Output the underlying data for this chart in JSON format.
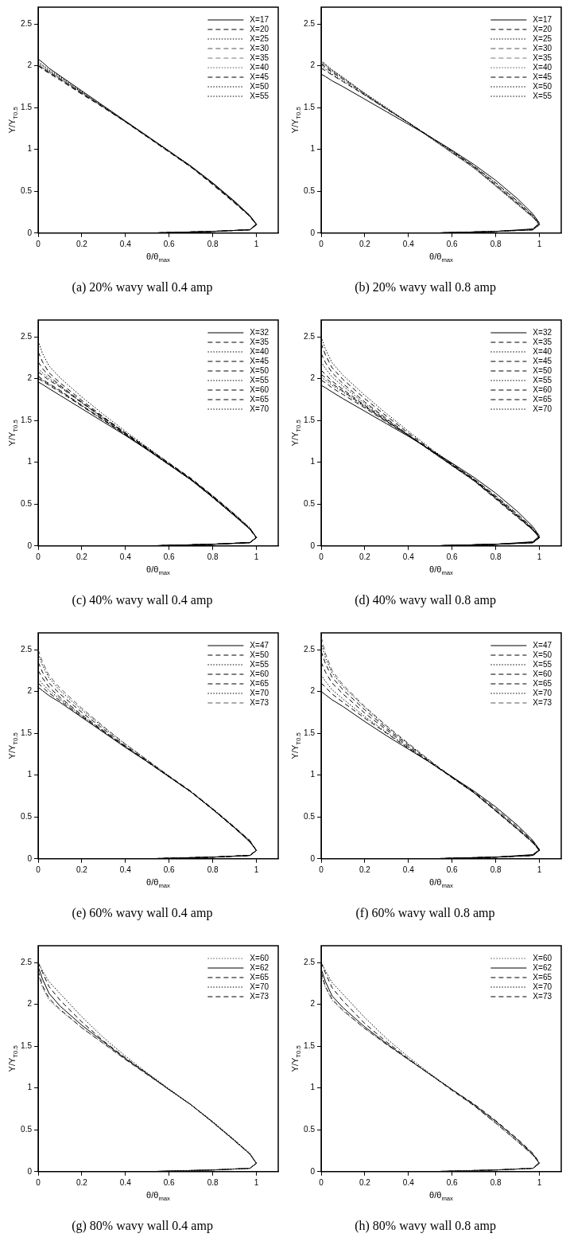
{
  "chart_data": [
    {
      "type": "line",
      "title": "(a) 20% wavy wall 0.4 amp",
      "xlabel": "θ/θ$_{max}$",
      "ylabel": "Y/Y$_{T0.5}$",
      "xlim": [
        0,
        1.1
      ],
      "ylim": [
        0,
        2.7
      ],
      "xticks": [
        0,
        0.2,
        0.4,
        0.6,
        0.8,
        1
      ],
      "yticks": [
        0,
        0.5,
        1,
        1.5,
        2,
        2.5
      ],
      "legend": "top right",
      "x": [
        0,
        0.02,
        0.05,
        0.1,
        0.2,
        0.3,
        0.4,
        0.5,
        0.6,
        0.7,
        0.8,
        0.9,
        0.97,
        1,
        0.97,
        0.8,
        0.5,
        0
      ],
      "series": [
        {
          "name": "X=17",
          "color": "#000000",
          "line_style": "solid",
          "values": [
            2.08,
            2.04,
            1.97,
            1.88,
            1.7,
            1.52,
            1.34,
            1.16,
            0.98,
            0.8,
            0.6,
            0.38,
            0.21,
            0.11,
            0.04,
            0.02,
            0,
            0
          ]
        },
        {
          "name": "X=20",
          "color": "#000000",
          "line_style": "dashed",
          "values": [
            2.0,
            1.97,
            1.92,
            1.84,
            1.67,
            1.5,
            1.33,
            1.15,
            0.97,
            0.79,
            0.58,
            0.36,
            0.2,
            0.1,
            0.04,
            0.02,
            0,
            0
          ]
        },
        {
          "name": "X=25",
          "color": "#000000",
          "line_style": "dotted",
          "values": [
            2.05,
            2.01,
            1.95,
            1.87,
            1.69,
            1.51,
            1.33,
            1.16,
            0.98,
            0.8,
            0.59,
            0.37,
            0.2,
            0.1,
            0.04,
            0.02,
            0,
            0
          ]
        },
        {
          "name": "X=30",
          "color": "#555555",
          "line_style": "dashed",
          "values": [
            2.0,
            1.96,
            1.91,
            1.83,
            1.67,
            1.5,
            1.33,
            1.15,
            0.97,
            0.79,
            0.58,
            0.36,
            0.2,
            0.1,
            0.04,
            0.02,
            0,
            0
          ]
        },
        {
          "name": "X=35",
          "color": "#777777",
          "line_style": "dashed",
          "values": [
            2.02,
            1.98,
            1.93,
            1.85,
            1.68,
            1.5,
            1.33,
            1.15,
            0.97,
            0.79,
            0.58,
            0.36,
            0.2,
            0.1,
            0.04,
            0.02,
            0,
            0
          ]
        },
        {
          "name": "X=40",
          "color": "#555555",
          "line_style": "dotted",
          "values": [
            2.01,
            1.97,
            1.92,
            1.84,
            1.67,
            1.5,
            1.33,
            1.15,
            0.97,
            0.79,
            0.59,
            0.37,
            0.2,
            0.1,
            0.04,
            0.02,
            0,
            0
          ]
        },
        {
          "name": "X=45",
          "color": "#000000",
          "line_style": "dashed",
          "values": [
            2.0,
            1.96,
            1.91,
            1.83,
            1.66,
            1.5,
            1.33,
            1.15,
            0.97,
            0.79,
            0.59,
            0.37,
            0.2,
            0.1,
            0.04,
            0.02,
            0,
            0
          ]
        },
        {
          "name": "X=50",
          "color": "#000000",
          "line_style": "dotted",
          "values": [
            2.02,
            1.98,
            1.93,
            1.85,
            1.68,
            1.51,
            1.33,
            1.15,
            0.97,
            0.79,
            0.59,
            0.37,
            0.2,
            0.1,
            0.04,
            0.02,
            0,
            0
          ]
        },
        {
          "name": "X=55",
          "color": "#000000",
          "line_style": "dotted",
          "values": [
            2.04,
            2.0,
            1.94,
            1.86,
            1.68,
            1.51,
            1.33,
            1.16,
            0.98,
            0.8,
            0.6,
            0.38,
            0.21,
            0.1,
            0.04,
            0.02,
            0,
            0
          ]
        }
      ]
    },
    {
      "type": "line",
      "title": "(b) 20% wavy wall 0.8 amp",
      "xlabel": "θ/θ$_{max}$",
      "ylabel": "Y/Y$_{T0.5}$",
      "xlim": [
        0,
        1.1
      ],
      "ylim": [
        0,
        2.7
      ],
      "xticks": [
        0,
        0.2,
        0.4,
        0.6,
        0.8,
        1
      ],
      "yticks": [
        0,
        0.5,
        1,
        1.5,
        2,
        2.5
      ],
      "legend": "top right",
      "x": [
        0,
        0.02,
        0.05,
        0.1,
        0.2,
        0.3,
        0.4,
        0.5,
        0.6,
        0.7,
        0.8,
        0.9,
        0.97,
        1,
        0.97,
        0.8,
        0.5,
        0
      ],
      "series": [
        {
          "name": "X=17",
          "color": "#000000",
          "line_style": "solid",
          "values": [
            1.9,
            1.87,
            1.82,
            1.75,
            1.6,
            1.45,
            1.3,
            1.15,
            0.99,
            0.82,
            0.63,
            0.41,
            0.23,
            0.12,
            0.05,
            0.02,
            0,
            0
          ]
        },
        {
          "name": "X=20",
          "color": "#000000",
          "line_style": "dashed",
          "values": [
            1.97,
            1.94,
            1.89,
            1.81,
            1.65,
            1.48,
            1.32,
            1.15,
            0.98,
            0.8,
            0.6,
            0.38,
            0.21,
            0.11,
            0.04,
            0.02,
            0,
            0
          ]
        },
        {
          "name": "X=25",
          "color": "#000000",
          "line_style": "dotted",
          "values": [
            2.0,
            1.96,
            1.9,
            1.82,
            1.65,
            1.48,
            1.32,
            1.15,
            0.98,
            0.8,
            0.6,
            0.38,
            0.21,
            0.11,
            0.04,
            0.02,
            0,
            0
          ]
        },
        {
          "name": "X=30",
          "color": "#555555",
          "line_style": "dashed",
          "values": [
            2.03,
            1.99,
            1.93,
            1.84,
            1.66,
            1.49,
            1.32,
            1.14,
            0.96,
            0.78,
            0.57,
            0.35,
            0.19,
            0.1,
            0.04,
            0.02,
            0,
            0
          ]
        },
        {
          "name": "X=35",
          "color": "#777777",
          "line_style": "dashed",
          "values": [
            2.05,
            2.01,
            1.94,
            1.85,
            1.66,
            1.49,
            1.32,
            1.14,
            0.96,
            0.78,
            0.56,
            0.34,
            0.19,
            0.1,
            0.04,
            0.02,
            0,
            0
          ]
        },
        {
          "name": "X=40",
          "color": "#555555",
          "line_style": "dotted",
          "values": [
            2.04,
            2.0,
            1.94,
            1.85,
            1.67,
            1.49,
            1.32,
            1.14,
            0.96,
            0.78,
            0.57,
            0.35,
            0.19,
            0.1,
            0.04,
            0.02,
            0,
            0
          ]
        },
        {
          "name": "X=45",
          "color": "#000000",
          "line_style": "dashed",
          "values": [
            2.02,
            1.98,
            1.92,
            1.84,
            1.66,
            1.49,
            1.32,
            1.14,
            0.97,
            0.79,
            0.58,
            0.36,
            0.2,
            0.1,
            0.04,
            0.02,
            0,
            0
          ]
        },
        {
          "name": "X=50",
          "color": "#000000",
          "line_style": "dotted",
          "values": [
            2.06,
            2.02,
            1.95,
            1.86,
            1.67,
            1.5,
            1.32,
            1.14,
            0.96,
            0.78,
            0.57,
            0.35,
            0.19,
            0.1,
            0.04,
            0.02,
            0,
            0
          ]
        },
        {
          "name": "X=55",
          "color": "#000000",
          "line_style": "dotted",
          "values": [
            2.05,
            2.01,
            1.95,
            1.86,
            1.67,
            1.49,
            1.32,
            1.14,
            0.96,
            0.78,
            0.56,
            0.34,
            0.19,
            0.1,
            0.04,
            0.02,
            0,
            0
          ]
        }
      ]
    },
    {
      "type": "line",
      "title": "(c) 40% wavy wall 0.4 amp",
      "xlabel": "θ/θ$_{max}$",
      "ylabel": "Y/Y$_{T0.5}$",
      "xlim": [
        0,
        1.1
      ],
      "ylim": [
        0,
        2.7
      ],
      "xticks": [
        0,
        0.2,
        0.4,
        0.6,
        0.8,
        1
      ],
      "yticks": [
        0,
        0.5,
        1,
        1.5,
        2,
        2.5
      ],
      "legend": "top right",
      "x": [
        0,
        0.02,
        0.05,
        0.1,
        0.2,
        0.3,
        0.4,
        0.5,
        0.6,
        0.7,
        0.8,
        0.9,
        0.97,
        1,
        0.97,
        0.8,
        0.5,
        0
      ],
      "series": [
        {
          "name": "X=32",
          "color": "#000000",
          "line_style": "solid",
          "values": [
            1.96,
            1.93,
            1.88,
            1.8,
            1.64,
            1.48,
            1.32,
            1.15,
            0.97,
            0.79,
            0.58,
            0.36,
            0.2,
            0.1,
            0.04,
            0.02,
            0,
            0
          ]
        },
        {
          "name": "X=35",
          "color": "#000000",
          "line_style": "dashed",
          "values": [
            2.0,
            1.97,
            1.92,
            1.84,
            1.67,
            1.5,
            1.33,
            1.15,
            0.97,
            0.79,
            0.58,
            0.36,
            0.2,
            0.1,
            0.04,
            0.02,
            0,
            0
          ]
        },
        {
          "name": "X=40",
          "color": "#000000",
          "line_style": "dotted",
          "values": [
            2.02,
            1.98,
            1.93,
            1.85,
            1.68,
            1.5,
            1.33,
            1.15,
            0.97,
            0.79,
            0.58,
            0.36,
            0.2,
            0.1,
            0.04,
            0.02,
            0,
            0
          ]
        },
        {
          "name": "X=45",
          "color": "#000000",
          "line_style": "dashed",
          "values": [
            2.03,
            1.99,
            1.94,
            1.86,
            1.68,
            1.51,
            1.33,
            1.16,
            0.98,
            0.8,
            0.59,
            0.37,
            0.2,
            0.1,
            0.04,
            0.02,
            0,
            0
          ]
        },
        {
          "name": "X=50",
          "color": "#000000",
          "line_style": "dashed",
          "values": [
            2.08,
            2.04,
            1.98,
            1.9,
            1.71,
            1.53,
            1.35,
            1.17,
            0.99,
            0.81,
            0.6,
            0.38,
            0.21,
            0.1,
            0.04,
            0.02,
            0,
            0
          ]
        },
        {
          "name": "X=55",
          "color": "#000000",
          "line_style": "dotted",
          "values": [
            2.12,
            2.07,
            2.0,
            1.91,
            1.71,
            1.52,
            1.34,
            1.16,
            0.98,
            0.8,
            0.59,
            0.37,
            0.21,
            0.1,
            0.04,
            0.02,
            0,
            0
          ]
        },
        {
          "name": "X=60",
          "color": "#000000",
          "line_style": "dashed",
          "values": [
            2.2,
            2.12,
            2.03,
            1.92,
            1.72,
            1.53,
            1.34,
            1.16,
            0.98,
            0.8,
            0.59,
            0.37,
            0.21,
            0.1,
            0.04,
            0.02,
            0,
            0
          ]
        },
        {
          "name": "X=65",
          "color": "#000000",
          "line_style": "dashed",
          "values": [
            2.32,
            2.2,
            2.07,
            1.95,
            1.74,
            1.54,
            1.35,
            1.17,
            0.98,
            0.8,
            0.59,
            0.37,
            0.21,
            0.1,
            0.04,
            0.02,
            0,
            0
          ]
        },
        {
          "name": "X=70",
          "color": "#000000",
          "line_style": "dotted",
          "values": [
            2.45,
            2.3,
            2.15,
            2.01,
            1.78,
            1.57,
            1.37,
            1.18,
            0.99,
            0.8,
            0.6,
            0.38,
            0.22,
            0.1,
            0.04,
            0.02,
            0,
            0
          ]
        }
      ]
    },
    {
      "type": "line",
      "title": "(d) 40% wavy wall 0.8 amp",
      "xlabel": "θ/θ$_{max}$",
      "ylabel": "Y/Y$_{T0.5}$",
      "xlim": [
        0,
        1.1
      ],
      "ylim": [
        0,
        2.7
      ],
      "xticks": [
        0,
        0.2,
        0.4,
        0.6,
        0.8,
        1
      ],
      "yticks": [
        0,
        0.5,
        1,
        1.5,
        2,
        2.5
      ],
      "legend": "top right",
      "x": [
        0,
        0.02,
        0.05,
        0.1,
        0.2,
        0.3,
        0.4,
        0.5,
        0.6,
        0.7,
        0.8,
        0.9,
        0.97,
        1,
        0.97,
        0.8,
        0.5,
        0
      ],
      "series": [
        {
          "name": "X=32",
          "color": "#000000",
          "line_style": "solid",
          "values": [
            1.92,
            1.89,
            1.84,
            1.76,
            1.61,
            1.46,
            1.31,
            1.15,
            0.99,
            0.82,
            0.63,
            0.41,
            0.23,
            0.12,
            0.05,
            0.02,
            0,
            0
          ]
        },
        {
          "name": "X=35",
          "color": "#000000",
          "line_style": "dashed",
          "values": [
            1.98,
            1.95,
            1.89,
            1.81,
            1.65,
            1.48,
            1.32,
            1.15,
            0.98,
            0.8,
            0.6,
            0.38,
            0.21,
            0.11,
            0.04,
            0.02,
            0,
            0
          ]
        },
        {
          "name": "X=40",
          "color": "#000000",
          "line_style": "dotted",
          "values": [
            2.02,
            1.98,
            1.92,
            1.84,
            1.66,
            1.49,
            1.32,
            1.15,
            0.97,
            0.79,
            0.58,
            0.36,
            0.2,
            0.1,
            0.04,
            0.02,
            0,
            0
          ]
        },
        {
          "name": "X=45",
          "color": "#000000",
          "line_style": "dashed",
          "values": [
            2.05,
            2.01,
            1.94,
            1.85,
            1.67,
            1.49,
            1.32,
            1.14,
            0.96,
            0.78,
            0.57,
            0.35,
            0.19,
            0.1,
            0.04,
            0.02,
            0,
            0
          ]
        },
        {
          "name": "X=50",
          "color": "#000000",
          "line_style": "dashed",
          "values": [
            2.1,
            2.05,
            1.97,
            1.87,
            1.68,
            1.5,
            1.32,
            1.14,
            0.96,
            0.78,
            0.56,
            0.34,
            0.19,
            0.1,
            0.04,
            0.02,
            0,
            0
          ]
        },
        {
          "name": "X=55",
          "color": "#000000",
          "line_style": "dotted",
          "values": [
            2.2,
            2.12,
            2.02,
            1.91,
            1.7,
            1.51,
            1.33,
            1.14,
            0.96,
            0.78,
            0.57,
            0.35,
            0.19,
            0.1,
            0.04,
            0.02,
            0,
            0
          ]
        },
        {
          "name": "X=60",
          "color": "#000000",
          "line_style": "dashed",
          "values": [
            2.3,
            2.19,
            2.07,
            1.94,
            1.72,
            1.52,
            1.33,
            1.15,
            0.97,
            0.79,
            0.58,
            0.36,
            0.2,
            0.1,
            0.04,
            0.02,
            0,
            0
          ]
        },
        {
          "name": "X=65",
          "color": "#000000",
          "line_style": "dashed",
          "values": [
            2.42,
            2.28,
            2.13,
            1.99,
            1.76,
            1.55,
            1.35,
            1.16,
            0.97,
            0.79,
            0.58,
            0.36,
            0.2,
            0.1,
            0.04,
            0.02,
            0,
            0
          ]
        },
        {
          "name": "X=70",
          "color": "#000000",
          "line_style": "dotted",
          "values": [
            2.5,
            2.35,
            2.19,
            2.04,
            1.8,
            1.58,
            1.37,
            1.17,
            0.98,
            0.8,
            0.59,
            0.37,
            0.21,
            0.1,
            0.04,
            0.02,
            0,
            0
          ]
        }
      ]
    },
    {
      "type": "line",
      "title": "(e) 60% wavy wall 0.4 amp",
      "xlabel": "θ/θ$_{max}$",
      "ylabel": "Y/Y$_{T0.5}$",
      "xlim": [
        0,
        1.1
      ],
      "ylim": [
        0,
        2.7
      ],
      "xticks": [
        0,
        0.2,
        0.4,
        0.6,
        0.8,
        1
      ],
      "yticks": [
        0,
        0.5,
        1,
        1.5,
        2,
        2.5
      ],
      "legend": "top right",
      "x": [
        0,
        0.02,
        0.05,
        0.1,
        0.2,
        0.3,
        0.4,
        0.5,
        0.6,
        0.7,
        0.8,
        0.9,
        0.97,
        1,
        0.97,
        0.8,
        0.5,
        0
      ],
      "series": [
        {
          "name": "X=47",
          "color": "#000000",
          "line_style": "solid",
          "values": [
            2.05,
            2.01,
            1.95,
            1.87,
            1.69,
            1.51,
            1.33,
            1.16,
            0.98,
            0.8,
            0.59,
            0.37,
            0.2,
            0.1,
            0.04,
            0.02,
            0,
            0
          ]
        },
        {
          "name": "X=50",
          "color": "#000000",
          "line_style": "dashed",
          "values": [
            2.1,
            2.05,
            1.98,
            1.89,
            1.7,
            1.52,
            1.34,
            1.16,
            0.98,
            0.8,
            0.59,
            0.37,
            0.21,
            0.1,
            0.04,
            0.02,
            0,
            0
          ]
        },
        {
          "name": "X=55",
          "color": "#000000",
          "line_style": "dotted",
          "values": [
            2.15,
            2.09,
            2.01,
            1.91,
            1.71,
            1.52,
            1.34,
            1.16,
            0.98,
            0.8,
            0.59,
            0.37,
            0.21,
            0.1,
            0.04,
            0.02,
            0,
            0
          ]
        },
        {
          "name": "X=60",
          "color": "#000000",
          "line_style": "dashed",
          "values": [
            2.25,
            2.16,
            2.05,
            1.93,
            1.72,
            1.53,
            1.34,
            1.16,
            0.98,
            0.8,
            0.59,
            0.37,
            0.21,
            0.1,
            0.04,
            0.02,
            0,
            0
          ]
        },
        {
          "name": "X=65",
          "color": "#000000",
          "line_style": "dashed",
          "values": [
            2.35,
            2.23,
            2.1,
            1.97,
            1.75,
            1.55,
            1.35,
            1.17,
            0.98,
            0.8,
            0.59,
            0.37,
            0.21,
            0.1,
            0.04,
            0.02,
            0,
            0
          ]
        },
        {
          "name": "X=70",
          "color": "#000000",
          "line_style": "dotted",
          "values": [
            2.45,
            2.31,
            2.16,
            2.01,
            1.78,
            1.57,
            1.37,
            1.18,
            0.99,
            0.8,
            0.6,
            0.38,
            0.22,
            0.1,
            0.04,
            0.02,
            0,
            0
          ]
        },
        {
          "name": "X=73",
          "color": "#555555",
          "line_style": "dashed",
          "values": [
            2.5,
            2.35,
            2.19,
            2.04,
            1.8,
            1.58,
            1.37,
            1.18,
            0.99,
            0.81,
            0.6,
            0.38,
            0.22,
            0.1,
            0.04,
            0.02,
            0,
            0
          ]
        }
      ]
    },
    {
      "type": "line",
      "title": "(f) 60% wavy wall 0.8 amp",
      "xlabel": "θ/θ$_{max}$",
      "ylabel": "Y/Y$_{T0.5}$",
      "xlim": [
        0,
        1.1
      ],
      "ylim": [
        0,
        2.7
      ],
      "xticks": [
        0,
        0.2,
        0.4,
        0.6,
        0.8,
        1
      ],
      "yticks": [
        0,
        0.5,
        1,
        1.5,
        2,
        2.5
      ],
      "legend": "top right",
      "x": [
        0,
        0.02,
        0.05,
        0.1,
        0.2,
        0.3,
        0.4,
        0.5,
        0.6,
        0.7,
        0.8,
        0.9,
        0.97,
        1,
        0.97,
        0.8,
        0.5,
        0
      ],
      "series": [
        {
          "name": "X=47",
          "color": "#000000",
          "line_style": "solid",
          "values": [
            2.0,
            1.96,
            1.9,
            1.82,
            1.64,
            1.47,
            1.31,
            1.15,
            0.98,
            0.81,
            0.62,
            0.4,
            0.22,
            0.11,
            0.05,
            0.02,
            0,
            0
          ]
        },
        {
          "name": "X=50",
          "color": "#000000",
          "line_style": "dashed",
          "values": [
            2.1,
            2.05,
            1.97,
            1.87,
            1.68,
            1.5,
            1.32,
            1.15,
            0.98,
            0.8,
            0.6,
            0.38,
            0.21,
            0.11,
            0.04,
            0.02,
            0,
            0
          ]
        },
        {
          "name": "X=55",
          "color": "#000000",
          "line_style": "dotted",
          "values": [
            2.2,
            2.12,
            2.02,
            1.91,
            1.7,
            1.51,
            1.33,
            1.15,
            0.97,
            0.79,
            0.58,
            0.36,
            0.2,
            0.1,
            0.04,
            0.02,
            0,
            0
          ]
        },
        {
          "name": "X=60",
          "color": "#000000",
          "line_style": "dashed",
          "values": [
            2.35,
            2.23,
            2.1,
            1.97,
            1.74,
            1.54,
            1.34,
            1.15,
            0.97,
            0.79,
            0.58,
            0.36,
            0.2,
            0.1,
            0.04,
            0.02,
            0,
            0
          ]
        },
        {
          "name": "X=65",
          "color": "#000000",
          "line_style": "dashed",
          "values": [
            2.48,
            2.33,
            2.17,
            2.02,
            1.78,
            1.56,
            1.36,
            1.16,
            0.97,
            0.79,
            0.57,
            0.35,
            0.19,
            0.1,
            0.04,
            0.02,
            0,
            0
          ]
        },
        {
          "name": "X=70",
          "color": "#000000",
          "line_style": "dotted",
          "values": [
            2.58,
            2.4,
            2.22,
            2.06,
            1.81,
            1.58,
            1.37,
            1.17,
            0.97,
            0.79,
            0.57,
            0.35,
            0.19,
            0.1,
            0.04,
            0.02,
            0,
            0
          ]
        },
        {
          "name": "X=73",
          "color": "#555555",
          "line_style": "dashed",
          "values": [
            2.65,
            2.45,
            2.25,
            2.08,
            1.82,
            1.59,
            1.38,
            1.17,
            0.98,
            0.79,
            0.58,
            0.36,
            0.2,
            0.1,
            0.04,
            0.02,
            0,
            0
          ]
        }
      ]
    },
    {
      "type": "line",
      "title": "(g) 80% wavy wall 0.4 amp",
      "xlabel": "θ/θ$_{max}$",
      "ylabel": "Y/Y$_{T0.5}$",
      "xlim": [
        0,
        1.1
      ],
      "ylim": [
        0,
        2.7
      ],
      "xticks": [
        0,
        0.2,
        0.4,
        0.6,
        0.8,
        1
      ],
      "yticks": [
        0,
        0.5,
        1,
        1.5,
        2,
        2.5
      ],
      "legend": "top right",
      "x": [
        0,
        0.02,
        0.05,
        0.1,
        0.2,
        0.3,
        0.4,
        0.5,
        0.6,
        0.7,
        0.8,
        0.9,
        0.97,
        1,
        0.97,
        0.8,
        0.5,
        0
      ],
      "series": [
        {
          "name": "X=60",
          "color": "#555555",
          "line_style": "dotted",
          "values": [
            2.35,
            2.2,
            2.05,
            1.93,
            1.72,
            1.53,
            1.34,
            1.16,
            0.98,
            0.8,
            0.59,
            0.37,
            0.21,
            0.1,
            0.04,
            0.02,
            0,
            0
          ]
        },
        {
          "name": "X=62",
          "color": "#000000",
          "line_style": "solid",
          "values": [
            2.45,
            2.3,
            2.13,
            1.98,
            1.75,
            1.55,
            1.35,
            1.17,
            0.98,
            0.8,
            0.59,
            0.37,
            0.21,
            0.1,
            0.04,
            0.02,
            0,
            0
          ]
        },
        {
          "name": "X=65",
          "color": "#000000",
          "line_style": "dashed",
          "values": [
            2.5,
            2.38,
            2.21,
            2.05,
            1.79,
            1.56,
            1.36,
            1.17,
            0.98,
            0.8,
            0.59,
            0.37,
            0.21,
            0.1,
            0.04,
            0.02,
            0,
            0
          ]
        },
        {
          "name": "X=70",
          "color": "#000000",
          "line_style": "dotted",
          "values": [
            2.5,
            2.4,
            2.27,
            2.13,
            1.85,
            1.6,
            1.38,
            1.18,
            0.99,
            0.8,
            0.6,
            0.38,
            0.22,
            0.1,
            0.04,
            0.02,
            0,
            0
          ]
        },
        {
          "name": "X=73",
          "color": "#000000",
          "line_style": "dashed",
          "values": [
            2.4,
            2.22,
            2.07,
            1.94,
            1.72,
            1.53,
            1.34,
            1.16,
            0.98,
            0.8,
            0.59,
            0.37,
            0.21,
            0.1,
            0.04,
            0.02,
            0,
            0
          ]
        }
      ]
    },
    {
      "type": "line",
      "title": "(h) 80% wavy wall 0.8 amp",
      "xlabel": "θ/θ$_{max}$",
      "ylabel": "Y/Y$_{T0.5}$",
      "xlim": [
        0,
        1.1
      ],
      "ylim": [
        0,
        2.7
      ],
      "xticks": [
        0,
        0.2,
        0.4,
        0.6,
        0.8,
        1
      ],
      "yticks": [
        0,
        0.5,
        1,
        1.5,
        2,
        2.5
      ],
      "legend": "top right",
      "x": [
        0,
        0.02,
        0.05,
        0.1,
        0.2,
        0.3,
        0.4,
        0.5,
        0.6,
        0.7,
        0.8,
        0.9,
        0.97,
        1,
        0.97,
        0.8,
        0.5,
        0
      ],
      "series": [
        {
          "name": "X=60",
          "color": "#555555",
          "line_style": "dotted",
          "values": [
            2.35,
            2.2,
            2.05,
            1.92,
            1.71,
            1.52,
            1.34,
            1.16,
            0.98,
            0.8,
            0.6,
            0.38,
            0.21,
            0.1,
            0.04,
            0.02,
            0,
            0
          ]
        },
        {
          "name": "X=62",
          "color": "#000000",
          "line_style": "solid",
          "values": [
            2.42,
            2.27,
            2.1,
            1.96,
            1.73,
            1.53,
            1.34,
            1.16,
            0.98,
            0.8,
            0.6,
            0.38,
            0.21,
            0.1,
            0.04,
            0.02,
            0,
            0
          ]
        },
        {
          "name": "X=65",
          "color": "#000000",
          "line_style": "dashed",
          "values": [
            2.5,
            2.37,
            2.2,
            2.04,
            1.77,
            1.55,
            1.35,
            1.16,
            0.97,
            0.79,
            0.58,
            0.36,
            0.2,
            0.1,
            0.04,
            0.02,
            0,
            0
          ]
        },
        {
          "name": "X=70",
          "color": "#000000",
          "line_style": "dotted",
          "values": [
            2.5,
            2.4,
            2.26,
            2.12,
            1.84,
            1.59,
            1.37,
            1.17,
            0.98,
            0.79,
            0.58,
            0.36,
            0.2,
            0.1,
            0.04,
            0.02,
            0,
            0
          ]
        },
        {
          "name": "X=73",
          "color": "#000000",
          "line_style": "dashed",
          "values": [
            2.38,
            2.21,
            2.06,
            1.93,
            1.71,
            1.52,
            1.34,
            1.16,
            0.98,
            0.81,
            0.61,
            0.39,
            0.22,
            0.11,
            0.04,
            0.02,
            0,
            0
          ]
        }
      ]
    }
  ]
}
